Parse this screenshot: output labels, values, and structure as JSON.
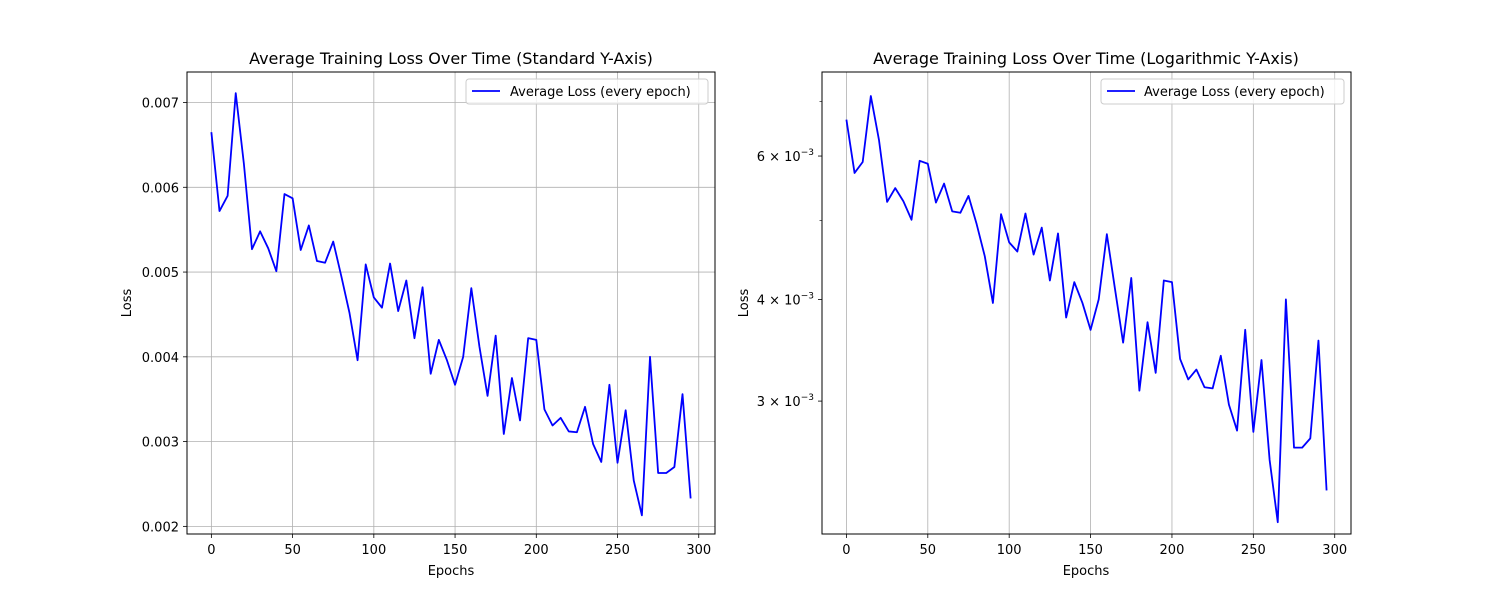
{
  "colors": {
    "line": "#0000ff",
    "grid": "#b0b0b0",
    "axis": "#000000",
    "background": "#ffffff"
  },
  "chart_data": [
    {
      "type": "line",
      "title": "Average Training Loss Over Time (Standard Y-Axis)",
      "xlabel": "Epochs",
      "ylabel": "Loss",
      "yscale": "linear",
      "xlim": [
        -15,
        310
      ],
      "ylim": [
        0.00191,
        0.00736
      ],
      "xticks": [
        0,
        50,
        100,
        150,
        200,
        250,
        300
      ],
      "xtick_labels": [
        "0",
        "50",
        "100",
        "150",
        "200",
        "250",
        "300"
      ],
      "yticks": [
        0.002,
        0.003,
        0.004,
        0.005,
        0.006,
        0.007
      ],
      "ytick_labels": [
        "0.002",
        "0.003",
        "0.004",
        "0.005",
        "0.006",
        "0.007"
      ],
      "grid": true,
      "legend_position": "top-right",
      "series": [
        {
          "name": "Average Loss (every epoch)",
          "x": [
            0,
            5,
            10,
            15,
            20,
            25,
            30,
            35,
            40,
            45,
            50,
            55,
            60,
            65,
            70,
            75,
            80,
            85,
            90,
            95,
            100,
            105,
            110,
            115,
            120,
            125,
            130,
            135,
            140,
            145,
            150,
            155,
            160,
            165,
            170,
            175,
            180,
            185,
            190,
            195,
            200,
            205,
            210,
            215,
            220,
            225,
            230,
            235,
            240,
            245,
            250,
            255,
            260,
            265,
            270,
            275,
            280,
            285,
            290,
            295
          ],
          "y": [
            0.00665,
            0.00572,
            0.0059,
            0.00711,
            0.00628,
            0.00527,
            0.00548,
            0.00528,
            0.00501,
            0.00592,
            0.00587,
            0.00526,
            0.00555,
            0.00513,
            0.00511,
            0.00536,
            0.00495,
            0.00452,
            0.00396,
            0.00509,
            0.0047,
            0.00458,
            0.0051,
            0.00454,
            0.0049,
            0.00422,
            0.00482,
            0.0038,
            0.0042,
            0.00396,
            0.00367,
            0.004,
            0.00481,
            0.00412,
            0.00354,
            0.00425,
            0.00309,
            0.00375,
            0.00325,
            0.00422,
            0.0042,
            0.00338,
            0.00319,
            0.00328,
            0.00312,
            0.00311,
            0.00341,
            0.00297,
            0.00276,
            0.00367,
            0.00275,
            0.00337,
            0.00254,
            0.00213,
            0.004,
            0.00263,
            0.00263,
            0.0027,
            0.00356,
            0.00233
          ]
        }
      ]
    },
    {
      "type": "line",
      "title": "Average Training Loss Over Time (Logarithmic Y-Axis)",
      "xlabel": "Epochs",
      "ylabel": "Loss",
      "yscale": "log",
      "xlim": [
        -15,
        310
      ],
      "ylim": [
        0.00206,
        0.00761
      ],
      "xticks": [
        0,
        50,
        100,
        150,
        200,
        250,
        300
      ],
      "xtick_labels": [
        "0",
        "50",
        "100",
        "150",
        "200",
        "250",
        "300"
      ],
      "yticks": [
        0.003,
        0.004,
        0.006
      ],
      "ytick_mantissa": [
        "3",
        "4",
        "6"
      ],
      "ytick_base": "10",
      "ytick_exponent": "−3",
      "yminor_ticks": [
        0.005,
        0.007
      ],
      "grid": true,
      "legend_position": "top-right",
      "series": [
        {
          "name": "Average Loss (every epoch)",
          "x": [
            0,
            5,
            10,
            15,
            20,
            25,
            30,
            35,
            40,
            45,
            50,
            55,
            60,
            65,
            70,
            75,
            80,
            85,
            90,
            95,
            100,
            105,
            110,
            115,
            120,
            125,
            130,
            135,
            140,
            145,
            150,
            155,
            160,
            165,
            170,
            175,
            180,
            185,
            190,
            195,
            200,
            205,
            210,
            215,
            220,
            225,
            230,
            235,
            240,
            245,
            250,
            255,
            260,
            265,
            270,
            275,
            280,
            285,
            290,
            295
          ],
          "y": [
            0.00665,
            0.00572,
            0.0059,
            0.00711,
            0.00628,
            0.00527,
            0.00548,
            0.00528,
            0.00501,
            0.00592,
            0.00587,
            0.00526,
            0.00555,
            0.00513,
            0.00511,
            0.00536,
            0.00495,
            0.00452,
            0.00396,
            0.00509,
            0.0047,
            0.00458,
            0.0051,
            0.00454,
            0.0049,
            0.00422,
            0.00482,
            0.0038,
            0.0042,
            0.00396,
            0.00367,
            0.004,
            0.00481,
            0.00412,
            0.00354,
            0.00425,
            0.00309,
            0.00375,
            0.00325,
            0.00422,
            0.0042,
            0.00338,
            0.00319,
            0.00328,
            0.00312,
            0.00311,
            0.00341,
            0.00297,
            0.00276,
            0.00367,
            0.00275,
            0.00337,
            0.00254,
            0.00213,
            0.004,
            0.00263,
            0.00263,
            0.0027,
            0.00356,
            0.00233
          ]
        }
      ]
    }
  ]
}
